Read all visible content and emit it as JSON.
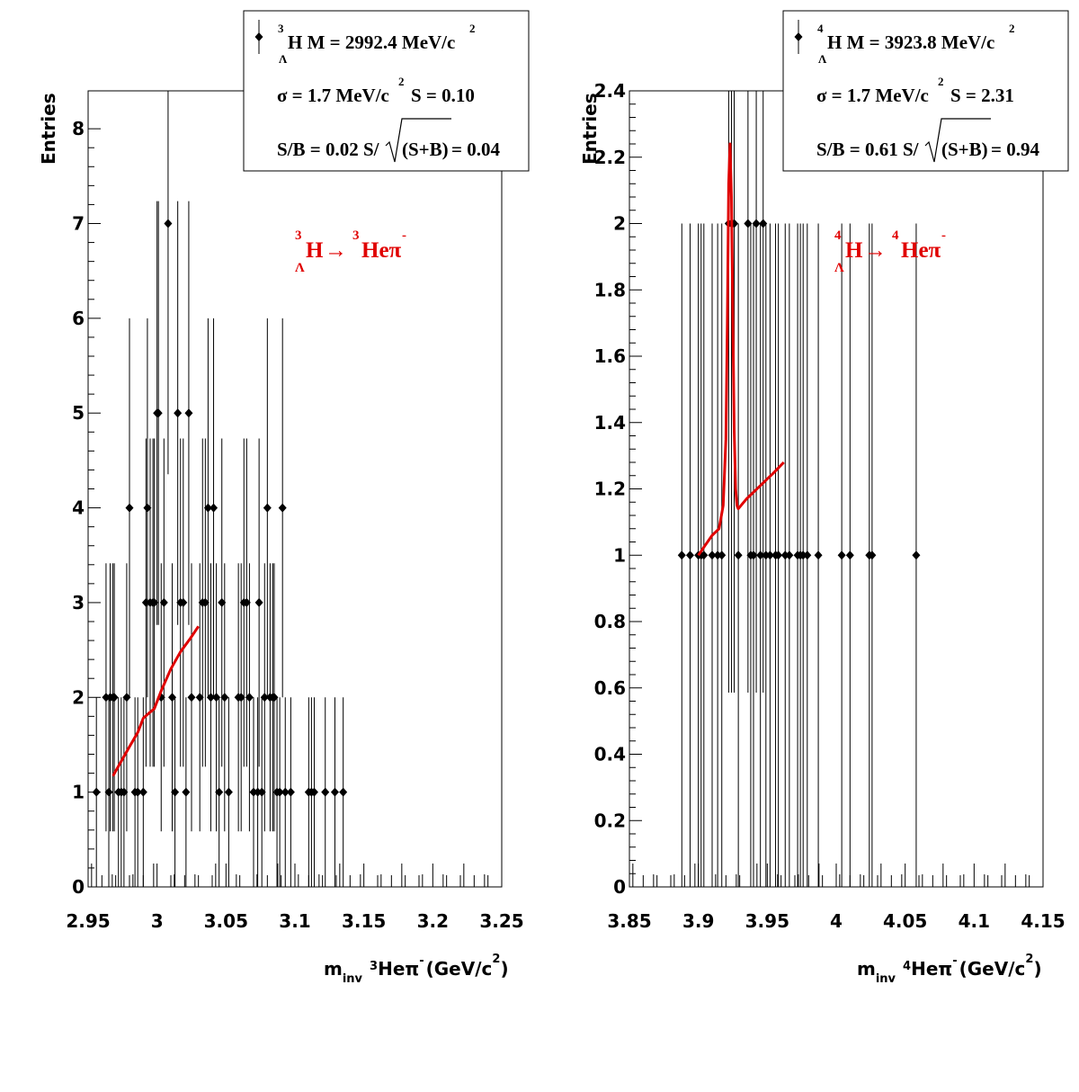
{
  "chart_data": [
    {
      "type": "scatter",
      "ylabel": "Entries",
      "xlabel": {
        "prefix": "m",
        "sub": "inv",
        "iso": "3",
        "particle": "He",
        "pion": "π",
        "charge": "-",
        "unit": "(GeV/c",
        "unit_exp": "2",
        "unit_close": ")"
      },
      "xlim": [
        2.95,
        3.25
      ],
      "ylim": [
        0,
        8.4
      ],
      "x_ticks": [
        "2.95",
        "3",
        "3.05",
        "3.1",
        "3.15",
        "3.2",
        "3.25"
      ],
      "y_ticks": [
        "0",
        "1",
        "2",
        "3",
        "4",
        "5",
        "6",
        "7",
        "8"
      ],
      "grid": false,
      "legend": {
        "line1": {
          "iso": "3",
          "sub": "Λ",
          "text": "H M = 2992.4 MeV/c",
          "exp": "2"
        },
        "line2": {
          "a": "σ = 1.7 MeV/c",
          "exp": "2",
          "b": "S = 0.10"
        },
        "line3": {
          "a": "S/B = 0.02  S/",
          "root": "(S+B)",
          "b": " = 0.04"
        }
      },
      "annotation": {
        "iso1": "3",
        "sub": "Λ",
        "h": "H",
        "arrow": "→",
        "iso2": "3",
        "he": "Heπ",
        "charge": "-"
      },
      "points": [
        [
          2.956,
          1
        ],
        [
          2.963,
          2
        ],
        [
          2.965,
          1
        ],
        [
          2.966,
          2
        ],
        [
          2.968,
          2
        ],
        [
          2.969,
          2
        ],
        [
          2.972,
          1
        ],
        [
          2.974,
          1
        ],
        [
          2.976,
          1
        ],
        [
          2.978,
          2
        ],
        [
          2.98,
          4
        ],
        [
          2.984,
          1
        ],
        [
          2.986,
          1
        ],
        [
          2.99,
          1
        ],
        [
          2.992,
          3
        ],
        [
          2.993,
          4
        ],
        [
          2.995,
          3
        ],
        [
          2.997,
          3
        ],
        [
          2.998,
          3
        ],
        [
          3.0,
          5
        ],
        [
          3.001,
          5
        ],
        [
          3.003,
          2
        ],
        [
          3.005,
          3
        ],
        [
          3.008,
          7
        ],
        [
          3.011,
          2
        ],
        [
          3.013,
          1
        ],
        [
          3.015,
          5
        ],
        [
          3.017,
          3
        ],
        [
          3.019,
          3
        ],
        [
          3.021,
          1
        ],
        [
          3.023,
          5
        ],
        [
          3.025,
          2
        ],
        [
          3.031,
          2
        ],
        [
          3.033,
          3
        ],
        [
          3.035,
          3
        ],
        [
          3.037,
          4
        ],
        [
          3.039,
          2
        ],
        [
          3.041,
          4
        ],
        [
          3.043,
          2
        ],
        [
          3.045,
          1
        ],
        [
          3.047,
          3
        ],
        [
          3.049,
          2
        ],
        [
          3.052,
          1
        ],
        [
          3.059,
          2
        ],
        [
          3.061,
          2
        ],
        [
          3.063,
          3
        ],
        [
          3.065,
          3
        ],
        [
          3.067,
          2
        ],
        [
          3.07,
          1
        ],
        [
          3.073,
          1
        ],
        [
          3.074,
          3
        ],
        [
          3.076,
          1
        ],
        [
          3.078,
          2
        ],
        [
          3.08,
          4
        ],
        [
          3.082,
          2
        ],
        [
          3.084,
          2
        ],
        [
          3.085,
          2
        ],
        [
          3.087,
          1
        ],
        [
          3.089,
          1
        ],
        [
          3.091,
          4
        ],
        [
          3.093,
          1
        ],
        [
          3.097,
          1
        ],
        [
          3.11,
          1
        ],
        [
          3.112,
          1
        ],
        [
          3.114,
          1
        ],
        [
          3.122,
          1
        ],
        [
          3.129,
          1
        ],
        [
          3.135,
          1
        ]
      ],
      "fit": {
        "color": "#e00000",
        "x": [
          2.968,
          2.975,
          2.98,
          2.986,
          2.99,
          2.993,
          2.998,
          3.003,
          3.01,
          3.017,
          3.024,
          3.03
        ],
        "y": [
          1.17,
          1.35,
          1.48,
          1.63,
          1.78,
          1.82,
          1.88,
          2.07,
          2.3,
          2.48,
          2.62,
          2.75
        ]
      }
    },
    {
      "type": "scatter",
      "ylabel": "Entries",
      "xlabel": {
        "prefix": "m",
        "sub": "inv",
        "iso": "4",
        "particle": "He",
        "pion": "π",
        "charge": "-",
        "unit": "(GeV/c",
        "unit_exp": "2",
        "unit_close": ")"
      },
      "xlim": [
        3.85,
        4.15
      ],
      "ylim": [
        0,
        2.4
      ],
      "x_ticks": [
        "3.85",
        "3.9",
        "3.95",
        "4",
        "4.05",
        "4.1",
        "4.15"
      ],
      "y_ticks": [
        "0",
        "0.2",
        "0.4",
        "0.6",
        "0.8",
        "1",
        "1.2",
        "1.4",
        "1.6",
        "1.8",
        "2",
        "2.2",
        "2.4"
      ],
      "grid": false,
      "legend": {
        "line1": {
          "iso": "4",
          "sub": "Λ",
          "text": "H M = 3923.8 MeV/c",
          "exp": "2"
        },
        "line2": {
          "a": "σ = 1.7 MeV/c",
          "exp": "2",
          "b": "S = 2.31"
        },
        "line3": {
          "a": "S/B = 0.61  S/",
          "root": "(S+B)",
          "b": " = 0.94"
        }
      },
      "annotation": {
        "iso1": "4",
        "sub": "Λ",
        "h": "H",
        "arrow": "→",
        "iso2": "4",
        "he": "Heπ",
        "charge": "-"
      },
      "points": [
        [
          3.888,
          1
        ],
        [
          3.894,
          1
        ],
        [
          3.9,
          1
        ],
        [
          3.902,
          1
        ],
        [
          3.904,
          1
        ],
        [
          3.91,
          1
        ],
        [
          3.914,
          1
        ],
        [
          3.917,
          1
        ],
        [
          3.922,
          2
        ],
        [
          3.924,
          2
        ],
        [
          3.926,
          2
        ],
        [
          3.929,
          1
        ],
        [
          3.936,
          2
        ],
        [
          3.938,
          1
        ],
        [
          3.94,
          1
        ],
        [
          3.942,
          2
        ],
        [
          3.945,
          1
        ],
        [
          3.947,
          2
        ],
        [
          3.949,
          1
        ],
        [
          3.952,
          1
        ],
        [
          3.956,
          1
        ],
        [
          3.958,
          1
        ],
        [
          3.963,
          1
        ],
        [
          3.966,
          1
        ],
        [
          3.972,
          1
        ],
        [
          3.974,
          1
        ],
        [
          3.976,
          1
        ],
        [
          3.979,
          1
        ],
        [
          3.987,
          1
        ],
        [
          4.004,
          1
        ],
        [
          4.01,
          1
        ],
        [
          4.024,
          1
        ],
        [
          4.026,
          1
        ],
        [
          4.058,
          1
        ]
      ],
      "fit": {
        "color": "#e00000",
        "x": [
          3.9,
          3.905,
          3.91,
          3.915,
          3.918,
          3.92,
          3.921,
          3.922,
          3.923,
          3.924,
          3.925,
          3.926,
          3.927,
          3.928,
          3.929,
          3.935,
          3.945,
          3.955,
          3.962
        ],
        "y": [
          1.0,
          1.03,
          1.06,
          1.08,
          1.15,
          1.35,
          1.7,
          2.12,
          2.24,
          2.08,
          1.72,
          1.38,
          1.2,
          1.15,
          1.14,
          1.17,
          1.21,
          1.25,
          1.28
        ]
      }
    }
  ]
}
